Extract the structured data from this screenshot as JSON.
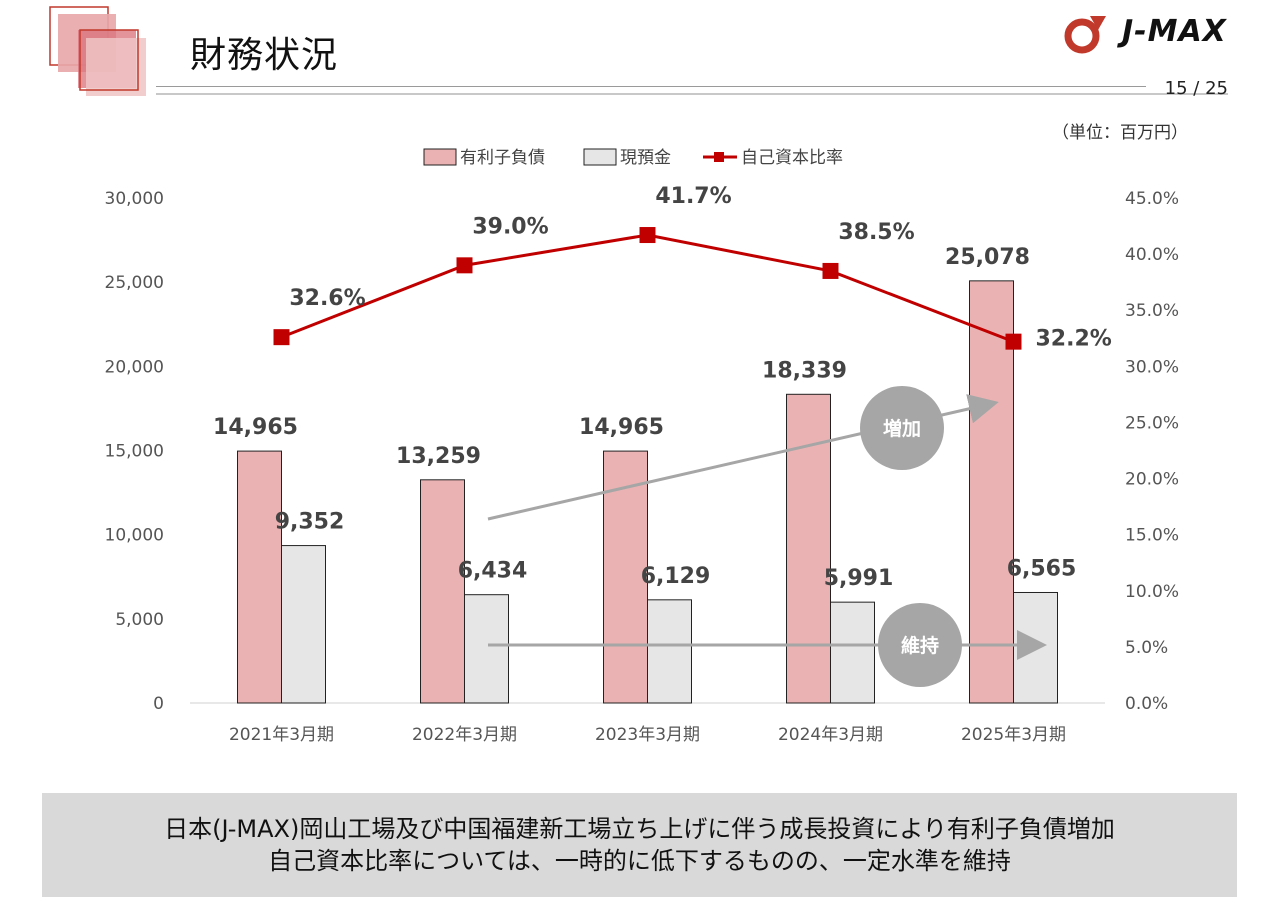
{
  "header": {
    "title": "財務状況",
    "page": "15 / 25",
    "unit": "（単位：百万円）",
    "logo_text": "J-MAX"
  },
  "colors": {
    "debt_bar": "#ebb2b3",
    "cash_bar": "#e6e6e6",
    "equity_line": "#c00000",
    "arrow": "#a6a6a6",
    "circle": "#a6a6a6",
    "accent_red": "#c0392b",
    "footer_bg": "#d9d9d9"
  },
  "chart_data": {
    "type": "bar",
    "categories": [
      "2021年3月期",
      "2022年3月期",
      "2023年3月期",
      "2024年3月期",
      "2025年3月期"
    ],
    "series": [
      {
        "name": "有利子負債",
        "kind": "bar",
        "axis": "left",
        "values": [
          14965,
          13259,
          14965,
          18339,
          25078
        ],
        "labels": [
          "14,965",
          "13,259",
          "14,965",
          "18,339",
          "25,078"
        ]
      },
      {
        "name": "現預金",
        "kind": "bar",
        "axis": "left",
        "values": [
          9352,
          6434,
          6129,
          5991,
          6565
        ],
        "labels": [
          "9,352",
          "6,434",
          "6,129",
          "5,991",
          "6,565"
        ]
      },
      {
        "name": "自己資本比率",
        "kind": "line",
        "axis": "right",
        "values": [
          32.6,
          39.0,
          41.7,
          38.5,
          32.2
        ],
        "labels": [
          "32.6%",
          "39.0%",
          "41.7%",
          "38.5%",
          "32.2%"
        ]
      }
    ],
    "y_left": {
      "lim": [
        0,
        30000
      ],
      "ticks": [
        "0",
        "5,000",
        "10,000",
        "15,000",
        "20,000",
        "25,000",
        "30,000"
      ]
    },
    "y_right": {
      "lim": [
        0,
        45
      ],
      "ticks": [
        "0.0%",
        "5.0%",
        "10.0%",
        "15.0%",
        "20.0%",
        "25.0%",
        "30.0%",
        "35.0%",
        "40.0%",
        "45.0%"
      ]
    },
    "legend_position": "top-center",
    "grid": false,
    "annotations": [
      {
        "text": "増加",
        "target": "有利子負債"
      },
      {
        "text": "維持",
        "target": "現預金"
      }
    ]
  },
  "footer": {
    "line1": "日本(J-MAX)岡山工場及び中国福建新工場立ち上げに伴う成長投資により有利子負債増加",
    "line2": "自己資本比率については、一時的に低下するものの、一定水準を維持"
  }
}
